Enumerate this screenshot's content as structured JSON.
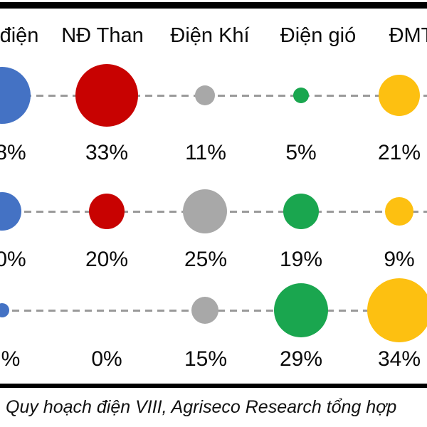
{
  "chart_data": {
    "type": "bubble",
    "description": "Bubble matrix of power-source shares (cropped chart image): 5 columns of energy types, 3 rows of planning-period percentages, bubble size encodes percent",
    "columns": [
      "điện",
      "NĐ Than",
      "Điện Khí",
      "Điện gió",
      "ĐMT"
    ],
    "columns_note": "first column label left-cropped, last column label right-cropped",
    "column_colors": [
      "#4472C4",
      "#C80201",
      "#A8A8A8",
      "#1AA64F",
      "#FDC011"
    ],
    "rows": [
      {
        "labels": [
          "8%",
          "33%",
          "11%",
          "5%",
          "21%"
        ],
        "values": [
          null,
          33,
          11,
          5,
          21
        ],
        "radius_px": [
          40,
          44,
          14,
          11,
          29
        ]
      },
      {
        "labels": [
          "0%",
          "20%",
          "25%",
          "19%",
          "9%"
        ],
        "values": [
          null,
          20,
          25,
          19,
          9
        ],
        "radius_px": [
          27,
          25,
          31,
          25,
          20
        ]
      },
      {
        "labels": [
          "%",
          "0%",
          "15%",
          "29%",
          "34%"
        ],
        "values": [
          null,
          0,
          15,
          29,
          34
        ],
        "radius_px": [
          10,
          0,
          19,
          38,
          45
        ]
      }
    ],
    "values_note": "first-column labels are truncated by the crop; visible text kept verbatim",
    "guideline_color": "#9a9a9a",
    "caption": "Quy hoạch điện VIII, Agriseco Research tổng hợp"
  }
}
